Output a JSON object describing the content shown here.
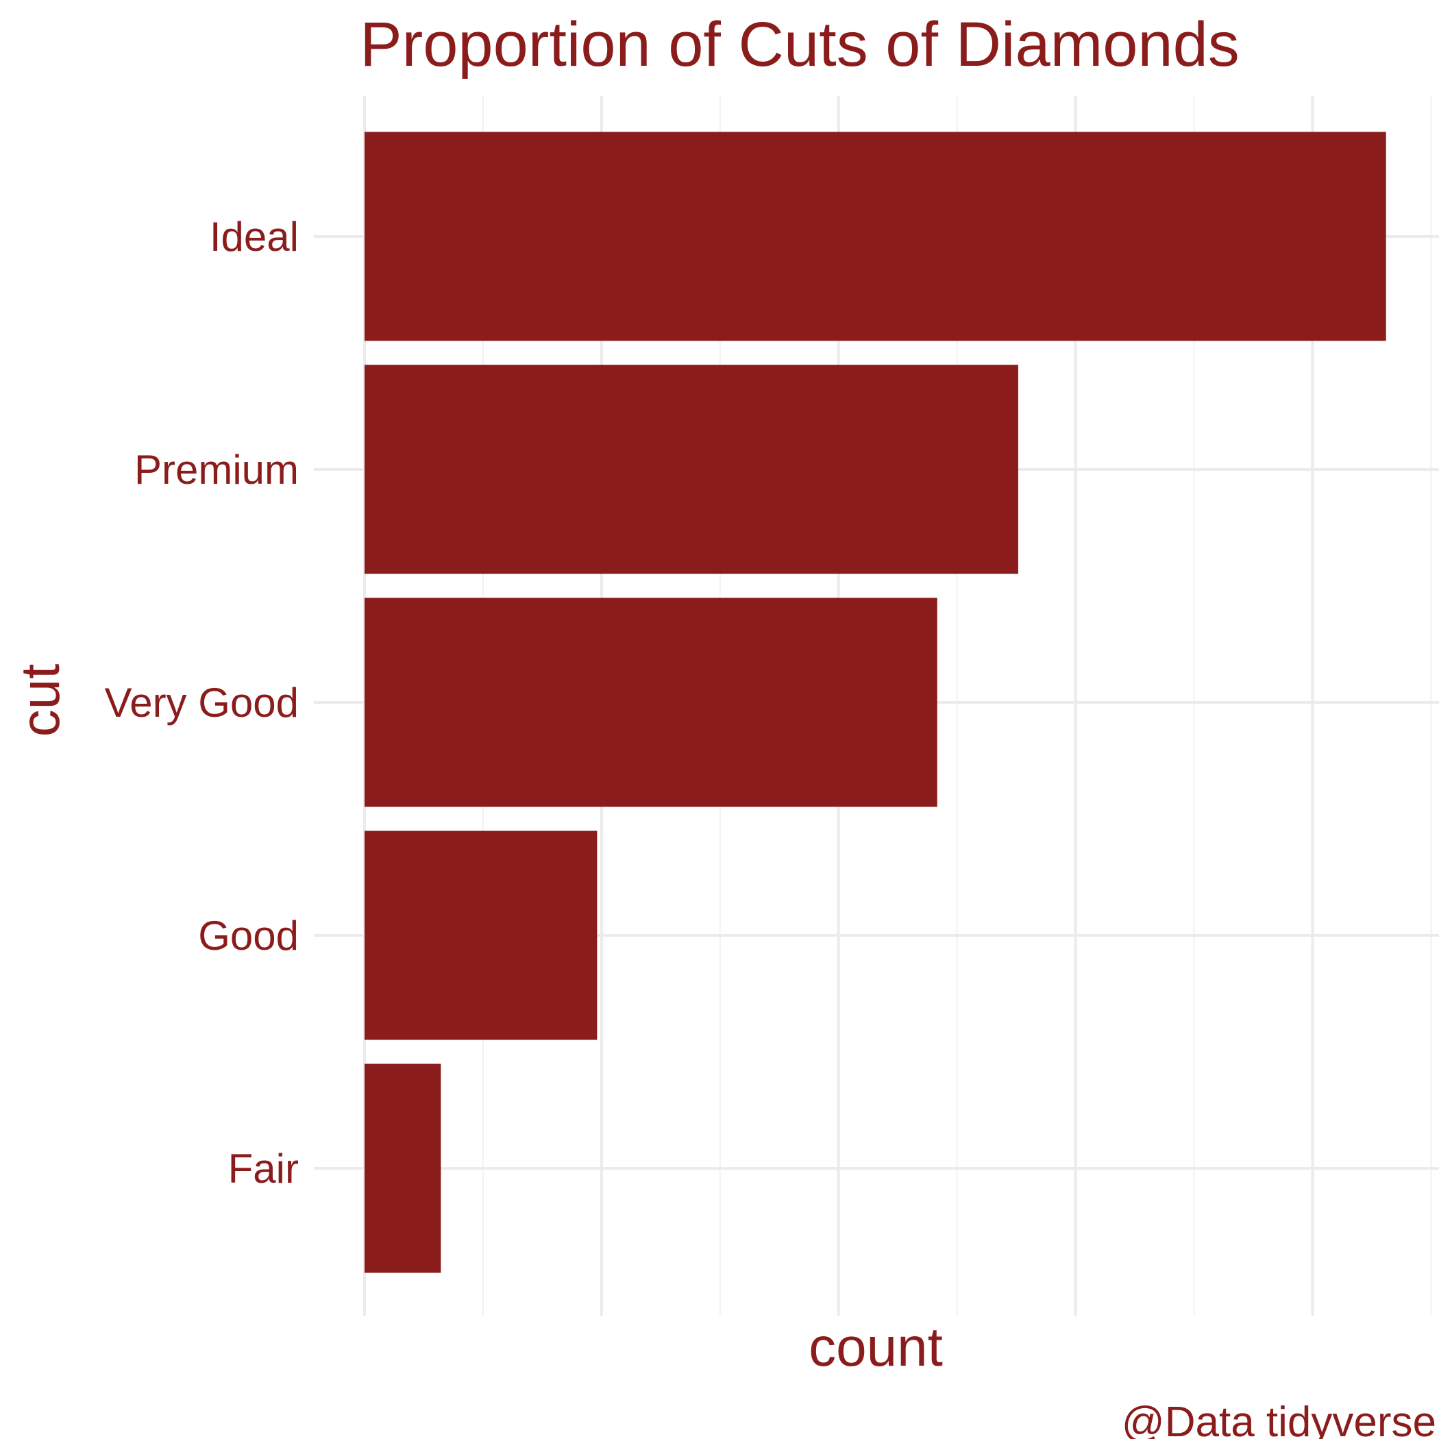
{
  "chart_data": {
    "type": "bar",
    "orientation": "horizontal",
    "title": "Proportion of Cuts of Diamonds",
    "xlabel": "count",
    "ylabel": "cut",
    "caption": "@Data tidyverse",
    "categories": [
      "Fair",
      "Good",
      "Very Good",
      "Premium",
      "Ideal"
    ],
    "values": [
      1610,
      4906,
      12082,
      13791,
      21551
    ],
    "xlim": [
      0,
      22500
    ],
    "x_major_breaks": [
      0,
      5000,
      10000,
      15000,
      20000
    ],
    "x_minor_breaks": [
      2500,
      7500,
      12500,
      17500,
      22500
    ],
    "x_tick_labels_shown": false,
    "grid": true,
    "legend": "none",
    "bar_color": "#8b1c1c",
    "text_color": "#8b1c1c",
    "background": "#ffffff"
  }
}
